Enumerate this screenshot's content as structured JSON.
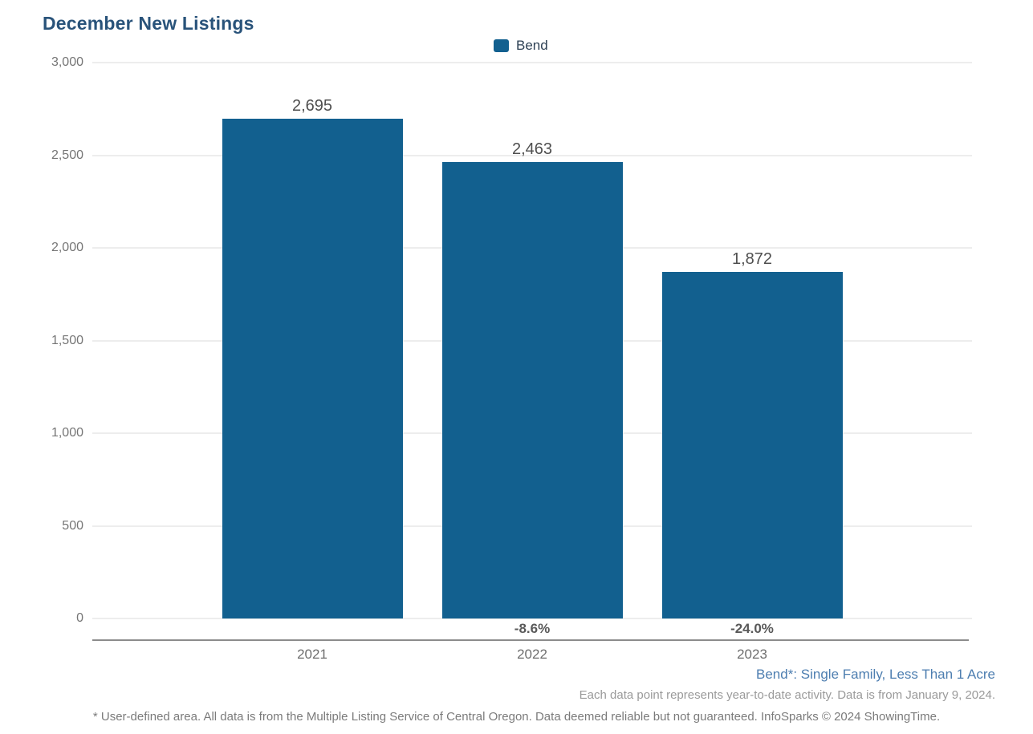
{
  "title": "December New Listings",
  "legend": {
    "label": "Bend"
  },
  "chart_data": {
    "type": "bar",
    "title": "December New Listings",
    "categories": [
      "2021",
      "2022",
      "2023"
    ],
    "series": [
      {
        "name": "Bend",
        "values": [
          2695,
          2463,
          1872
        ]
      }
    ],
    "values": [
      2695,
      2463,
      1872
    ],
    "value_labels": [
      "2,695",
      "2,463",
      "1,872"
    ],
    "pct_change_labels": [
      "",
      "-8.6%",
      "-24.0%"
    ],
    "xlabel": "",
    "ylabel": "",
    "ylim": [
      0,
      3000
    ],
    "ytick_interval": 500,
    "ytick_labels": [
      "3,000",
      "2,500",
      "2,000",
      "1,500",
      "1,000",
      "500",
      "0"
    ],
    "grid": true,
    "legend_position": "top-center",
    "bar_color": "#12608f"
  },
  "annotations": {
    "series_note": "Bend*: Single Family, Less Than 1 Acre",
    "data_note": "Each data point represents year-to-date activity. Data is from January 9, 2024.",
    "footnote": "* User-defined area. All data is from the Multiple Listing Service of Central Oregon. Data deemed reliable but not guaranteed. InfoSparks © 2024 ShowingTime."
  },
  "colors": {
    "bar": "#12608f",
    "title": "#29537a",
    "series_note": "#4d7eb0",
    "gridline": "#ededed",
    "axis_line": "#8c8c8c",
    "tick_text": "#757575"
  }
}
